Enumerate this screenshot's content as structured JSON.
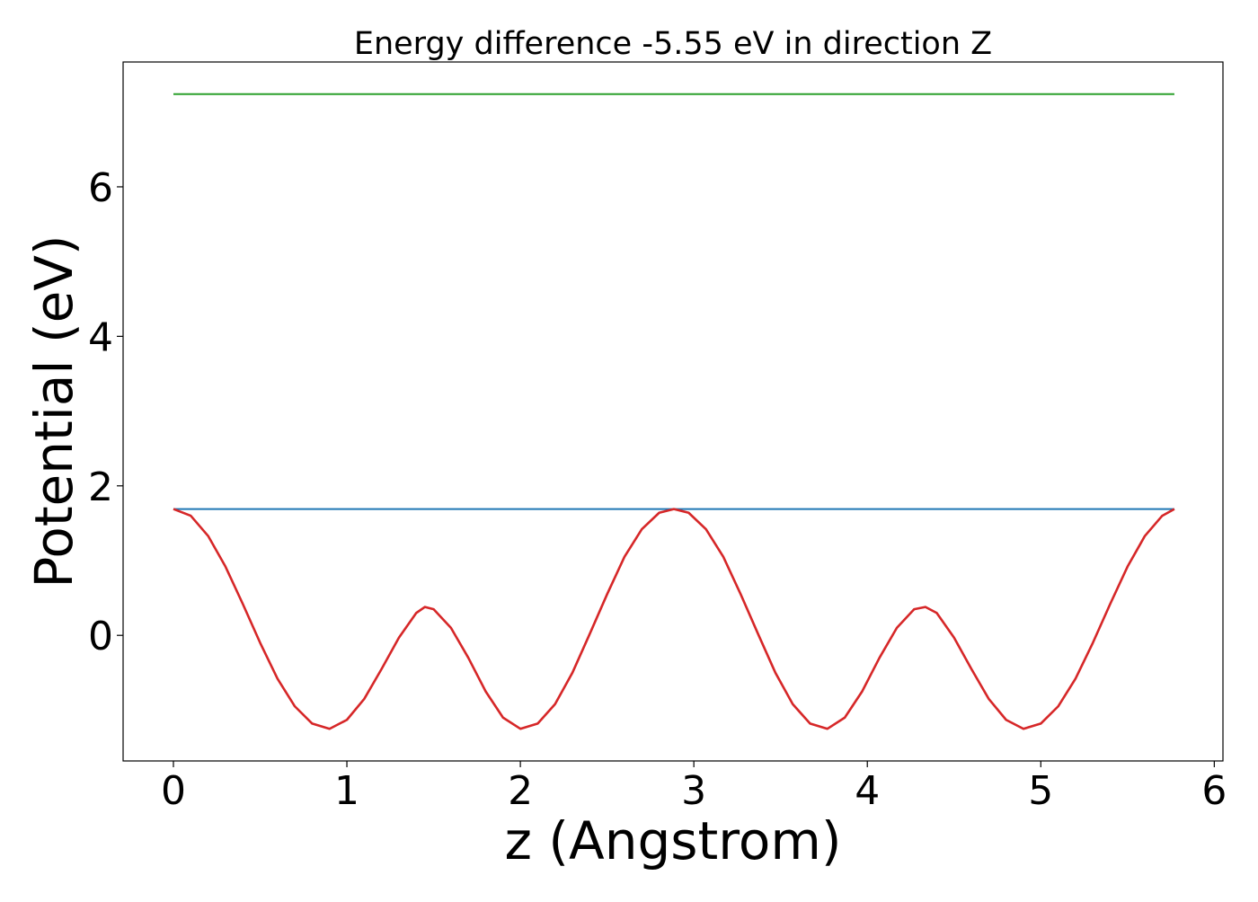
{
  "chart_data": {
    "type": "line",
    "title": "Energy difference -5.55 eV in direction Z",
    "xlabel": "z (Angstrom)",
    "ylabel": "Potential (eV)",
    "xlim": [
      -0.29,
      6.05
    ],
    "ylim": [
      -1.68,
      7.67
    ],
    "xticks": [
      0,
      1,
      2,
      3,
      4,
      5,
      6
    ],
    "yticks": [
      0,
      2,
      4,
      6
    ],
    "grid": false,
    "legend": "none",
    "series": [
      {
        "color": "#2ca02c",
        "x": [
          0.0,
          5.77
        ],
        "y": [
          7.24,
          7.24
        ]
      },
      {
        "color": "#1f77b4",
        "x": [
          0.0,
          5.77
        ],
        "y": [
          1.69,
          1.69
        ]
      },
      {
        "color": "#d62728",
        "x": [
          0.0,
          0.1,
          0.2,
          0.3,
          0.4,
          0.5,
          0.6,
          0.7,
          0.8,
          0.9,
          1.0,
          1.1,
          1.2,
          1.3,
          1.4,
          1.45,
          1.5,
          1.6,
          1.7,
          1.8,
          1.9,
          2.0,
          2.1,
          2.2,
          2.3,
          2.4,
          2.5,
          2.6,
          2.7,
          2.8,
          2.885,
          2.97,
          3.07,
          3.17,
          3.27,
          3.37,
          3.47,
          3.57,
          3.67,
          3.77,
          3.87,
          3.97,
          4.07,
          4.17,
          4.27,
          4.335,
          4.4,
          4.5,
          4.6,
          4.7,
          4.8,
          4.9,
          5.0,
          5.1,
          5.2,
          5.3,
          5.4,
          5.5,
          5.6,
          5.7,
          5.77
        ],
        "y": [
          1.69,
          1.6,
          1.33,
          0.92,
          0.42,
          -0.1,
          -0.58,
          -0.95,
          -1.18,
          -1.25,
          -1.13,
          -0.85,
          -0.45,
          -0.03,
          0.3,
          0.38,
          0.35,
          0.1,
          -0.3,
          -0.75,
          -1.1,
          -1.25,
          -1.18,
          -0.92,
          -0.5,
          0.02,
          0.55,
          1.05,
          1.42,
          1.64,
          1.69,
          1.64,
          1.42,
          1.05,
          0.55,
          0.02,
          -0.5,
          -0.92,
          -1.18,
          -1.25,
          -1.1,
          -0.75,
          -0.3,
          0.1,
          0.35,
          0.38,
          0.3,
          -0.03,
          -0.45,
          -0.85,
          -1.13,
          -1.25,
          -1.18,
          -0.95,
          -0.58,
          -0.1,
          0.42,
          0.92,
          1.33,
          1.6,
          1.69
        ]
      }
    ]
  }
}
